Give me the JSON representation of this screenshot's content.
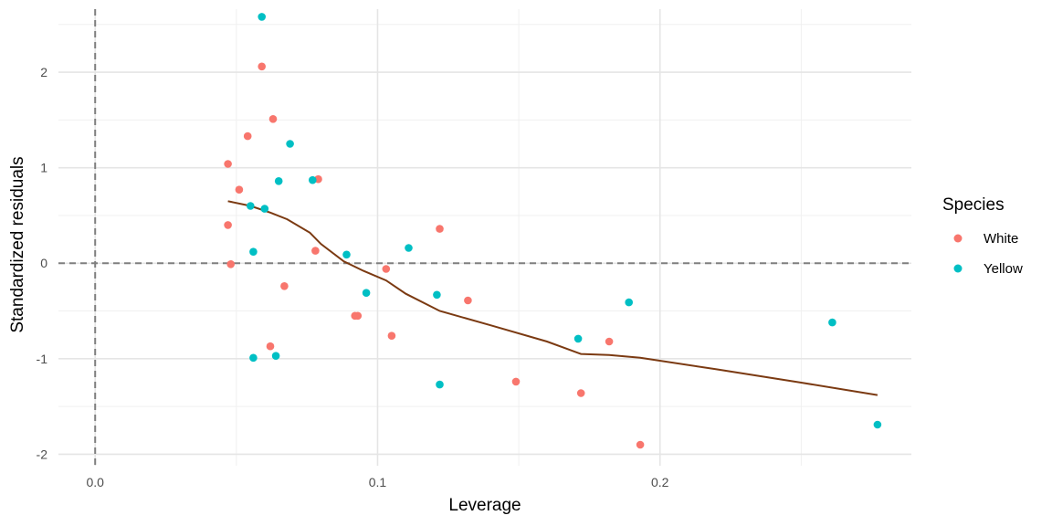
{
  "chart_data": {
    "type": "scatter",
    "xlabel": "Leverage",
    "ylabel": "Standardized residuals",
    "xlim": [
      -0.013,
      0.289
    ],
    "ylim": [
      -2.12,
      2.66
    ],
    "x_ticks": [
      0.0,
      0.1,
      0.2
    ],
    "x_tick_labels": [
      "0.0",
      "0.1",
      "0.2"
    ],
    "y_ticks": [
      -2,
      -1,
      0,
      1,
      2
    ],
    "y_tick_labels": [
      "-2",
      "-1",
      "0",
      "1",
      "2"
    ],
    "grid": true,
    "legend": {
      "title": "Species",
      "position": "right"
    },
    "reference_lines": [
      {
        "orientation": "vertical",
        "value": 0,
        "style": "dashed",
        "color": "#7f7f7f"
      },
      {
        "orientation": "horizontal",
        "value": 0,
        "style": "dashed",
        "color": "#7f7f7f"
      }
    ],
    "series": [
      {
        "name": "White",
        "color": "#F8766D",
        "points": [
          [
            0.047,
            1.04
          ],
          [
            0.047,
            0.4
          ],
          [
            0.048,
            -0.01
          ],
          [
            0.051,
            0.77
          ],
          [
            0.054,
            1.33
          ],
          [
            0.059,
            2.06
          ],
          [
            0.062,
            -0.87
          ],
          [
            0.063,
            1.51
          ],
          [
            0.067,
            -0.24
          ],
          [
            0.078,
            0.13
          ],
          [
            0.079,
            0.88
          ],
          [
            0.092,
            -0.55
          ],
          [
            0.093,
            -0.55
          ],
          [
            0.103,
            -0.06
          ],
          [
            0.105,
            -0.76
          ],
          [
            0.122,
            0.36
          ],
          [
            0.132,
            -0.39
          ],
          [
            0.149,
            -1.24
          ],
          [
            0.172,
            -1.36
          ],
          [
            0.182,
            -0.82
          ],
          [
            0.193,
            -1.9
          ]
        ]
      },
      {
        "name": "Yellow",
        "color": "#00BFC4",
        "points": [
          [
            0.055,
            0.6
          ],
          [
            0.056,
            0.12
          ],
          [
            0.056,
            -0.99
          ],
          [
            0.059,
            2.58
          ],
          [
            0.06,
            0.57
          ],
          [
            0.064,
            -0.97
          ],
          [
            0.065,
            0.86
          ],
          [
            0.069,
            1.25
          ],
          [
            0.077,
            0.87
          ],
          [
            0.089,
            0.09
          ],
          [
            0.096,
            -0.31
          ],
          [
            0.111,
            0.16
          ],
          [
            0.121,
            -0.33
          ],
          [
            0.122,
            -1.27
          ],
          [
            0.171,
            -0.79
          ],
          [
            0.189,
            -0.41
          ],
          [
            0.261,
            -0.62
          ],
          [
            0.277,
            -1.69
          ]
        ]
      }
    ],
    "smooth_line": {
      "color": "#7B3A12",
      "points": [
        [
          0.047,
          0.65
        ],
        [
          0.055,
          0.6
        ],
        [
          0.062,
          0.53
        ],
        [
          0.068,
          0.46
        ],
        [
          0.076,
          0.32
        ],
        [
          0.08,
          0.2
        ],
        [
          0.088,
          0.02
        ],
        [
          0.095,
          -0.08
        ],
        [
          0.103,
          -0.18
        ],
        [
          0.11,
          -0.32
        ],
        [
          0.122,
          -0.5
        ],
        [
          0.14,
          -0.65
        ],
        [
          0.16,
          -0.82
        ],
        [
          0.172,
          -0.95
        ],
        [
          0.182,
          -0.96
        ],
        [
          0.193,
          -0.99
        ],
        [
          0.22,
          -1.11
        ],
        [
          0.25,
          -1.25
        ],
        [
          0.277,
          -1.38
        ]
      ]
    }
  }
}
